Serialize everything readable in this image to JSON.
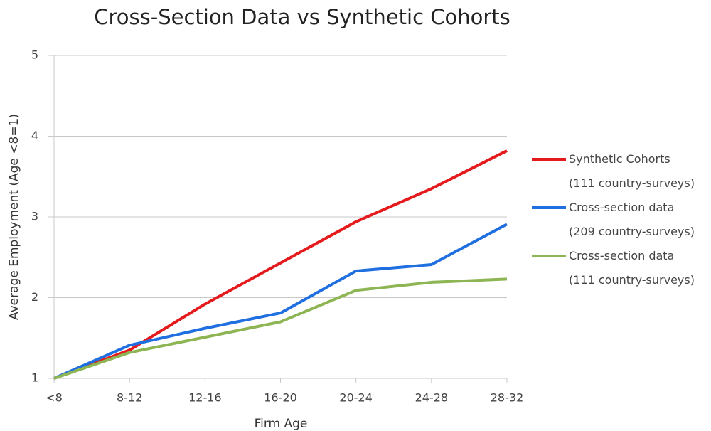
{
  "chart_data": {
    "type": "line",
    "title": "Cross-Section Data vs Synthetic Cohorts",
    "x_label": "Firm Age",
    "y_label": "Average Employment (Age <8=1)",
    "categories": [
      "<8",
      "8-12",
      "12-16",
      "16-20",
      "20-24",
      "24-28",
      "28-32"
    ],
    "series": [
      {
        "name": "Synthetic Cohorts\n(111 country-surveys)",
        "color": "#e41a1c",
        "values": [
          1,
          1.35,
          1.92,
          2.43,
          2.94,
          3.35,
          3.82
        ]
      },
      {
        "name": "Cross-section data\n(209 country-surveys)",
        "color": "#1f6fe0",
        "values": [
          1,
          1.41,
          1.62,
          1.81,
          2.33,
          2.41,
          2.91
        ]
      },
      {
        "name": "Cross-section data\n(111 country-surveys)",
        "color": "#8db553",
        "values": [
          1,
          1.32,
          1.51,
          1.7,
          2.09,
          2.19,
          2.23
        ]
      }
    ],
    "ylim": [
      1,
      5
    ],
    "yticks": [
      1,
      2,
      3,
      4,
      5
    ],
    "grid": true,
    "legend": "right"
  }
}
